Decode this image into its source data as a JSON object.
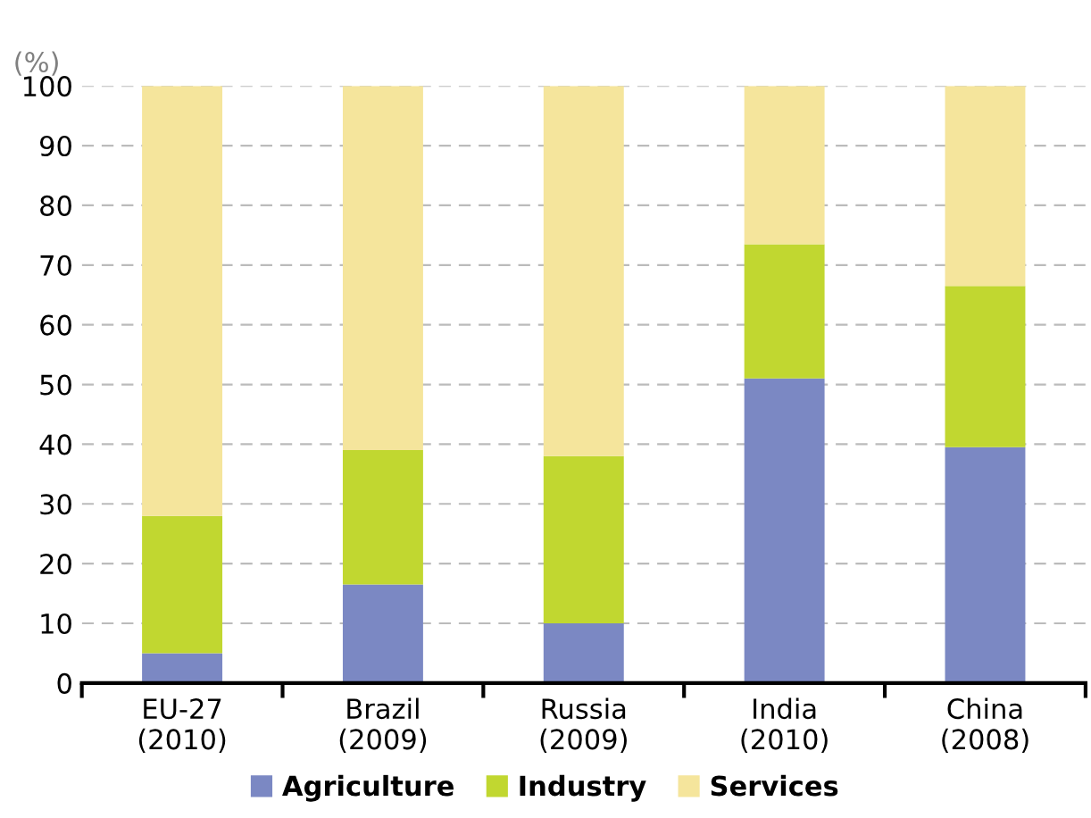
{
  "chart_data": {
    "type": "bar",
    "stacked": true,
    "ylabel": "(%)",
    "categories": [
      "EU-27\n(2010)",
      "Brazil\n(2009)",
      "Russia\n(2009)",
      "India\n(2010)",
      "China\n(2008)"
    ],
    "series": [
      {
        "name": "Agriculture",
        "color": "#7b88c3",
        "values": [
          5,
          16.5,
          10,
          51,
          39.5
        ]
      },
      {
        "name": "Industry",
        "color": "#c1d730",
        "values": [
          23,
          22.5,
          28,
          22.5,
          27
        ]
      },
      {
        "name": "Services",
        "color": "#f5e59c",
        "values": [
          72,
          61,
          62,
          26.5,
          33.5
        ]
      }
    ],
    "ylim": [
      0,
      100
    ],
    "yticks": [
      0,
      10,
      20,
      30,
      40,
      50,
      60,
      70,
      80,
      90,
      100
    ],
    "grid": "y",
    "legend": "bottom"
  }
}
